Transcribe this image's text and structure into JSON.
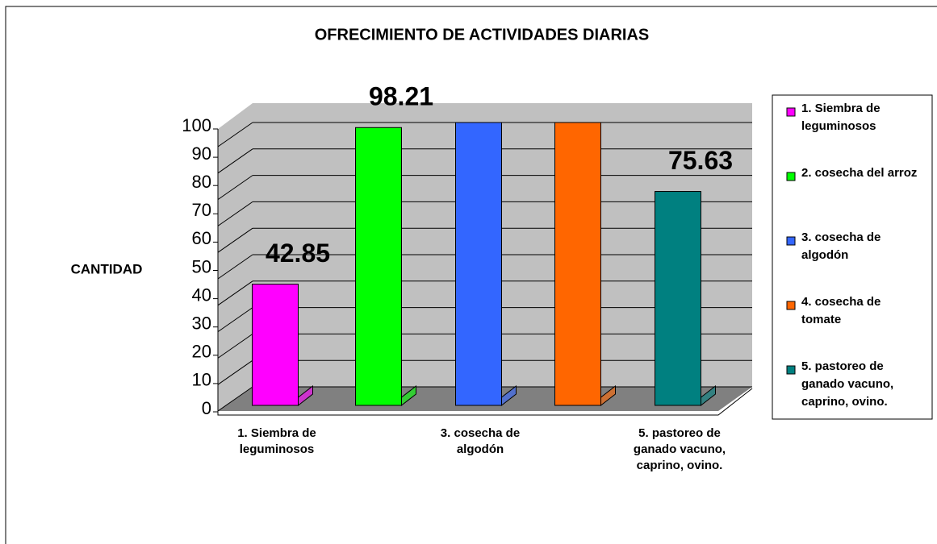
{
  "chart_data": {
    "type": "bar3d",
    "title": "OFRECIMIENTO DE ACTIVIDADES DIARIAS",
    "y_label": "CANTIDAD",
    "categories": [
      "1. Siembra de leguminosos",
      "2. cosecha del arroz",
      "3. cosecha de algodón",
      "4. cosecha de tomate",
      "5. pastoreo de ganado vacuno, caprino, ovino."
    ],
    "values": [
      42.85,
      98.21,
      100,
      100,
      75.63
    ],
    "value_labels": [
      "42.85",
      "98.21",
      null,
      null,
      "75.63"
    ],
    "colors": [
      "#ff00ff",
      "#00ff00",
      "#3366ff",
      "#ff6600",
      "#008080"
    ],
    "x_label_interval": 2,
    "ylim": [
      0,
      100
    ],
    "yticks": [
      0,
      10,
      20,
      30,
      40,
      50,
      60,
      70,
      80,
      90,
      100
    ],
    "grid": true,
    "legend": "right"
  }
}
